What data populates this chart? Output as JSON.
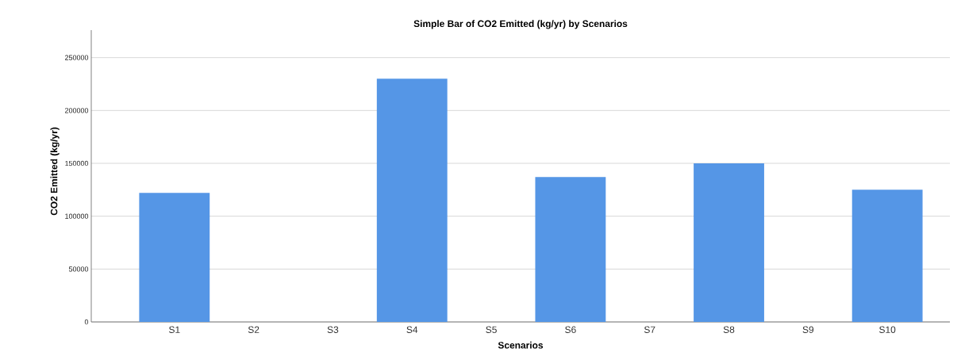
{
  "chart_data": {
    "type": "bar",
    "title": "Simple Bar of CO2 Emitted (kg/yr) by Scenarios",
    "xlabel": "Scenarios",
    "ylabel": "CO2 Emitted (kg/yr)",
    "categories": [
      "S1",
      "S2",
      "S3",
      "S4",
      "S5",
      "S6",
      "S7",
      "S8",
      "S9",
      "S10"
    ],
    "values": [
      122000,
      0,
      0,
      230000,
      0,
      137000,
      0,
      150000,
      0,
      125000
    ],
    "color": "#5596e6",
    "ylim": [
      0,
      276000
    ],
    "yticks": [
      0,
      50000,
      100000,
      150000,
      200000,
      250000
    ],
    "grid": "y"
  }
}
